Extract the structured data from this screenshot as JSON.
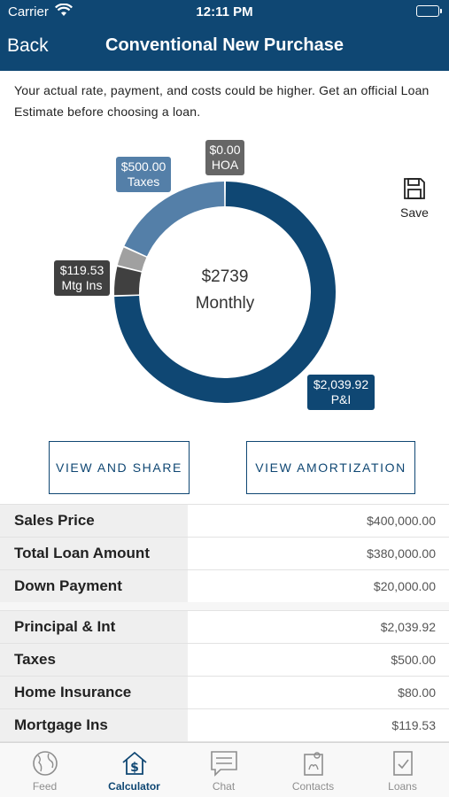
{
  "status_bar": {
    "carrier": "Carrier",
    "time": "12:11 PM"
  },
  "nav": {
    "back_label": "Back",
    "title": "Conventional New Purchase"
  },
  "disclaimer": "Your actual rate, payment, and costs could be higher. Get an official Loan Estimate before choosing a loan.",
  "chart_data": {
    "type": "pie",
    "title": "",
    "center": {
      "amount": "$2739",
      "label": "Monthly"
    },
    "slices": [
      {
        "name": "P&I",
        "label": "$2,039.92",
        "value": 2039.92,
        "color": "#0f4773"
      },
      {
        "name": "Mtg Ins",
        "label": "$119.53",
        "value": 119.53,
        "color": "#404040"
      },
      {
        "name": "Home Insurance",
        "value": 80.0,
        "color": "#a0a0a0"
      },
      {
        "name": "Taxes",
        "label": "$500.00",
        "value": 500.0,
        "color": "#547fa8"
      },
      {
        "name": "HOA",
        "label": "$0.00",
        "value": 0.0,
        "color": "#666666"
      }
    ]
  },
  "save_label": "Save",
  "buttons": {
    "share": "VIEW AND SHARE",
    "amortization": "VIEW AMORTIZATION"
  },
  "loan_table": [
    {
      "label": "Sales Price",
      "value": "$400,000.00"
    },
    {
      "label": "Total Loan Amount",
      "value": "$380,000.00"
    },
    {
      "label": "Down Payment",
      "value": "$20,000.00"
    }
  ],
  "payment_table": [
    {
      "label": "Principal & Int",
      "value": "$2,039.92"
    },
    {
      "label": "Taxes",
      "value": "$500.00"
    },
    {
      "label": "Home Insurance",
      "value": "$80.00"
    },
    {
      "label": "Mortgage Ins",
      "value": "$119.53"
    }
  ],
  "tabs": [
    {
      "label": "Feed",
      "icon": "globe-icon",
      "active": false
    },
    {
      "label": "Calculator",
      "icon": "calculator-house-icon",
      "active": true
    },
    {
      "label": "Chat",
      "icon": "chat-icon",
      "active": false
    },
    {
      "label": "Contacts",
      "icon": "contacts-icon",
      "active": false
    },
    {
      "label": "Loans",
      "icon": "loans-icon",
      "active": false
    }
  ]
}
